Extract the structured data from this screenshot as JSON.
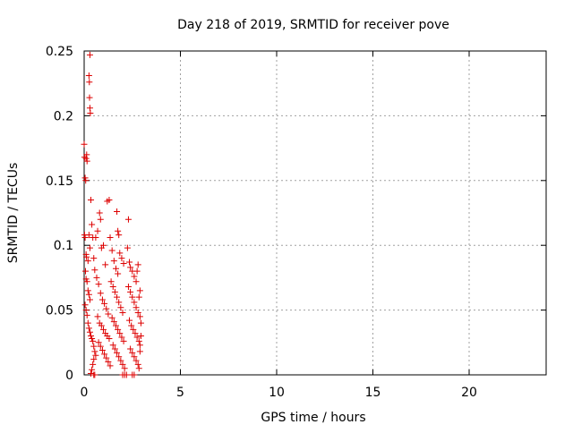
{
  "chart_data": {
    "type": "scatter",
    "title": "Day 218 of 2019, SRMTID for receiver pove",
    "xlabel": "GPS time / hours",
    "ylabel": "SRMTID / TECUs",
    "xlim": [
      0,
      24
    ],
    "ylim": [
      0,
      0.25
    ],
    "x_ticks": [
      0,
      5,
      10,
      15,
      20
    ],
    "y_ticks": [
      0,
      0.05,
      0.1,
      0.15,
      0.2,
      0.25
    ],
    "x_tick_labels": [
      "0",
      "5",
      "10",
      "15",
      "20"
    ],
    "y_tick_labels": [
      "0",
      "0.05",
      "0.1",
      "0.15",
      "0.2",
      "0.25"
    ],
    "grid": true,
    "marker": "plus",
    "marker_color": "#dd0000",
    "series": [
      {
        "points": [
          [
            0.0,
            0.178
          ],
          [
            0.02,
            0.168
          ],
          [
            0.05,
            0.152
          ],
          [
            0.08,
            0.15
          ],
          [
            0.1,
            0.167
          ],
          [
            0.13,
            0.17
          ],
          [
            0.15,
            0.165
          ],
          [
            0.3,
            0.247
          ],
          [
            0.25,
            0.231
          ],
          [
            0.27,
            0.226
          ],
          [
            0.28,
            0.214
          ],
          [
            0.3,
            0.206
          ],
          [
            0.32,
            0.202
          ],
          [
            0.35,
            0.135
          ],
          [
            0.4,
            0.116
          ],
          [
            0.02,
            0.108
          ],
          [
            0.05,
            0.106
          ],
          [
            0.1,
            0.093
          ],
          [
            0.12,
            0.091
          ],
          [
            0.2,
            0.088
          ],
          [
            0.25,
            0.108
          ],
          [
            0.3,
            0.098
          ],
          [
            0.45,
            0.106
          ],
          [
            0.5,
            0.09
          ],
          [
            0.55,
            0.081
          ],
          [
            0.07,
            0.08
          ],
          [
            0.1,
            0.074
          ],
          [
            0.15,
            0.072
          ],
          [
            0.2,
            0.065
          ],
          [
            0.25,
            0.062
          ],
          [
            0.3,
            0.058
          ],
          [
            0.05,
            0.054
          ],
          [
            0.1,
            0.05
          ],
          [
            0.15,
            0.046
          ],
          [
            0.2,
            0.04
          ],
          [
            0.25,
            0.036
          ],
          [
            0.3,
            0.033
          ],
          [
            0.35,
            0.03
          ],
          [
            0.4,
            0.028
          ],
          [
            0.45,
            0.026
          ],
          [
            0.5,
            0.022
          ],
          [
            0.55,
            0.018
          ],
          [
            0.6,
            0.015
          ],
          [
            0.5,
            0.012
          ],
          [
            0.45,
            0.008
          ],
          [
            0.4,
            0.004
          ],
          [
            0.35,
            0.001
          ],
          [
            0.5,
            0.0
          ],
          [
            0.55,
            0.0
          ],
          [
            0.6,
            0.106
          ],
          [
            0.7,
            0.111
          ],
          [
            0.8,
            0.125
          ],
          [
            0.85,
            0.12
          ],
          [
            0.9,
            0.098
          ],
          [
            1.0,
            0.1
          ],
          [
            1.1,
            0.085
          ],
          [
            0.65,
            0.075
          ],
          [
            0.75,
            0.07
          ],
          [
            0.85,
            0.063
          ],
          [
            0.95,
            0.058
          ],
          [
            1.05,
            0.055
          ],
          [
            1.15,
            0.051
          ],
          [
            1.25,
            0.047
          ],
          [
            0.7,
            0.045
          ],
          [
            0.8,
            0.04
          ],
          [
            0.9,
            0.038
          ],
          [
            1.0,
            0.035
          ],
          [
            1.1,
            0.032
          ],
          [
            1.2,
            0.03
          ],
          [
            1.3,
            0.028
          ],
          [
            0.75,
            0.025
          ],
          [
            0.85,
            0.022
          ],
          [
            0.95,
            0.019
          ],
          [
            1.05,
            0.016
          ],
          [
            1.15,
            0.013
          ],
          [
            1.25,
            0.01
          ],
          [
            1.35,
            0.007
          ],
          [
            1.3,
            0.135
          ],
          [
            1.2,
            0.134
          ],
          [
            1.35,
            0.106
          ],
          [
            1.45,
            0.096
          ],
          [
            1.55,
            0.088
          ],
          [
            1.65,
            0.082
          ],
          [
            1.75,
            0.078
          ],
          [
            1.4,
            0.072
          ],
          [
            1.5,
            0.068
          ],
          [
            1.6,
            0.064
          ],
          [
            1.7,
            0.06
          ],
          [
            1.8,
            0.056
          ],
          [
            1.9,
            0.052
          ],
          [
            2.0,
            0.048
          ],
          [
            1.45,
            0.044
          ],
          [
            1.55,
            0.041
          ],
          [
            1.65,
            0.038
          ],
          [
            1.75,
            0.035
          ],
          [
            1.85,
            0.032
          ],
          [
            1.95,
            0.029
          ],
          [
            2.05,
            0.026
          ],
          [
            1.5,
            0.023
          ],
          [
            1.6,
            0.02
          ],
          [
            1.7,
            0.017
          ],
          [
            1.8,
            0.014
          ],
          [
            1.9,
            0.011
          ],
          [
            2.0,
            0.008
          ],
          [
            2.1,
            0.005
          ],
          [
            1.7,
            0.126
          ],
          [
            1.75,
            0.111
          ],
          [
            1.8,
            0.108
          ],
          [
            1.85,
            0.094
          ],
          [
            1.95,
            0.09
          ],
          [
            2.05,
            0.086
          ],
          [
            2.0,
            0.0
          ],
          [
            2.1,
            0.0
          ],
          [
            2.2,
            0.0
          ],
          [
            2.5,
            0.0
          ],
          [
            2.6,
            0.0
          ],
          [
            2.3,
            0.12
          ],
          [
            2.25,
            0.098
          ],
          [
            2.35,
            0.087
          ],
          [
            2.4,
            0.083
          ],
          [
            2.5,
            0.08
          ],
          [
            2.6,
            0.076
          ],
          [
            2.7,
            0.072
          ],
          [
            2.3,
            0.068
          ],
          [
            2.4,
            0.064
          ],
          [
            2.5,
            0.06
          ],
          [
            2.6,
            0.056
          ],
          [
            2.7,
            0.052
          ],
          [
            2.8,
            0.048
          ],
          [
            2.9,
            0.045
          ],
          [
            2.35,
            0.042
          ],
          [
            2.45,
            0.038
          ],
          [
            2.55,
            0.035
          ],
          [
            2.65,
            0.032
          ],
          [
            2.75,
            0.029
          ],
          [
            2.85,
            0.026
          ],
          [
            2.9,
            0.023
          ],
          [
            2.4,
            0.02
          ],
          [
            2.5,
            0.017
          ],
          [
            2.6,
            0.014
          ],
          [
            2.7,
            0.011
          ],
          [
            2.8,
            0.008
          ],
          [
            2.85,
            0.005
          ],
          [
            2.9,
            0.018
          ],
          [
            2.95,
            0.04
          ],
          [
            2.95,
            0.03
          ],
          [
            2.9,
            0.065
          ],
          [
            2.85,
            0.06
          ],
          [
            2.8,
            0.085
          ],
          [
            2.75,
            0.08
          ]
        ]
      }
    ]
  }
}
